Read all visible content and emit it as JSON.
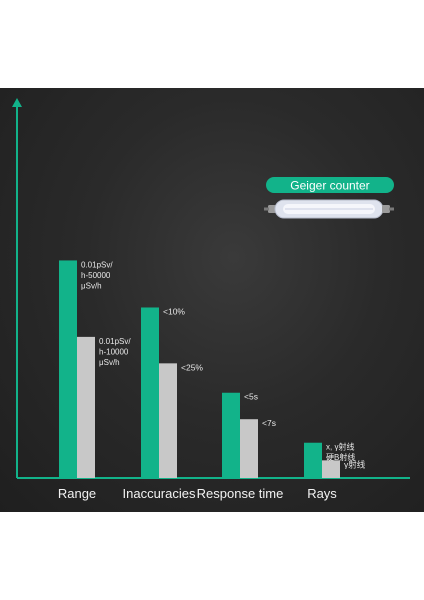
{
  "colors": {
    "accent": "#12b38a",
    "secondary": "#c8c8c8",
    "background": "#2a2a2a",
    "text": "#e8e8e8"
  },
  "legend": {
    "badge_label": "Geiger counter",
    "tube_icon": "geiger-tube-icon"
  },
  "chart_data": {
    "type": "bar",
    "title": "",
    "xlabel": "",
    "ylabel": "",
    "grid": false,
    "ylim": [
      0,
      100
    ],
    "categories": [
      "Range",
      "Inaccuracies",
      "Response time",
      "Rays"
    ],
    "series": [
      {
        "color": "#12b38a",
        "values": [
          74,
          58,
          29,
          12
        ],
        "labels": [
          [
            "0.01pSv/",
            "h-50000",
            "μSv/h"
          ],
          [
            "<10%"
          ],
          [
            "<5s"
          ],
          [
            "x, γ射线",
            "硬B射线"
          ]
        ]
      },
      {
        "color": "#c8c8c8",
        "values": [
          48,
          39,
          20,
          6
        ],
        "labels": [
          [
            "0.01pSv/",
            "h-10000",
            "μSv/h"
          ],
          [
            "<25%"
          ],
          [
            "<7s"
          ],
          [
            "γ射线"
          ]
        ]
      }
    ]
  }
}
